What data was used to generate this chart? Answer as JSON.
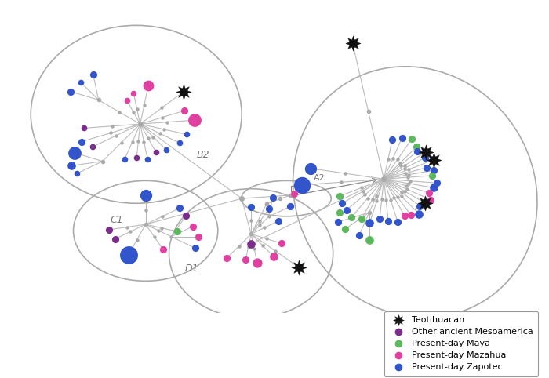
{
  "bg_color": "#ffffff",
  "colors": {
    "teotihuacan": "#111111",
    "ancient": "#7B2D8B",
    "maya": "#5cb85c",
    "mazahua": "#e040a0",
    "zapotec": "#3355cc",
    "node": "#aaaaaa"
  },
  "legend_labels": [
    "Teotihuacan",
    "Other ancient Mesoamerica",
    "Present-day Maya",
    "Present-day Mazahua",
    "Present-day Zapotec"
  ],
  "legend_colors": [
    "#111111",
    "#7B2D8B",
    "#5cb85c",
    "#e040a0",
    "#3355cc"
  ]
}
